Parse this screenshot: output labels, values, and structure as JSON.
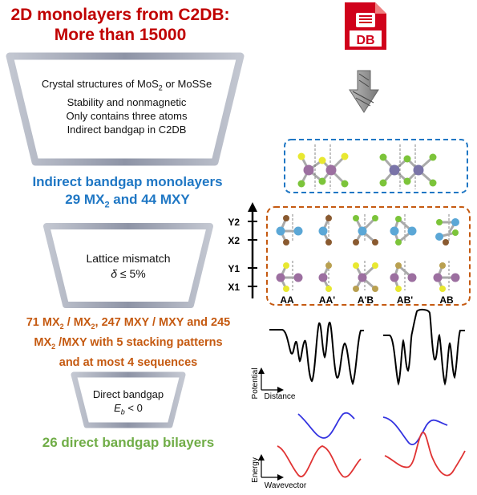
{
  "title": {
    "line1": "2D monolayers from C2DB:",
    "line2": "More than 15000"
  },
  "db_icon": {
    "label": "DB",
    "color": "#d0021b"
  },
  "step1": {
    "line1_prefix": "Crystal structures of  MoS",
    "line1_sub": "2",
    "line1_suffix": " or MoSSe",
    "line2": "Stability and nonmagnetic",
    "line3": "Only contains three atoms",
    "line4": "Indirect bandgap in C2DB"
  },
  "result1": {
    "line1": "Indirect bandgap monolayers",
    "line2_a": "29 MX",
    "line2_sub": "2",
    "line2_b": " and 44 MXY"
  },
  "step2": {
    "line1": "Lattice mismatch",
    "delta": "δ",
    "line2_rest": " ≤ 5%"
  },
  "result2": {
    "l1_a": "71 MX",
    "l1_s1": "2",
    "l1_b": " / MX",
    "l1_s2": "2",
    "l1_c": ", 247 MXY / MXY and 245",
    "l2_a": "MX",
    "l2_s": "2",
    "l2_b": " /MXY with 5 stacking patterns",
    "l3": "and at most 4 sequences"
  },
  "step3": {
    "line1": "Direct bandgap",
    "e": "E",
    "e_sub": "b",
    "line2_rest": " < 0"
  },
  "result3": {
    "text": "26 direct bandgap bilayers"
  },
  "layer_axis": {
    "labels": [
      "Y2",
      "X2",
      "Y1",
      "X1"
    ]
  },
  "stacking_labels": [
    "AA",
    "AA'",
    "A'B",
    "AB'",
    "AB"
  ],
  "potential_plot": {
    "ylabel": "Potential",
    "xlabel": "Distance"
  },
  "energy_plot": {
    "ylabel": "Energy",
    "xlabel": "Wavevector"
  },
  "colors": {
    "title": "#c00000",
    "blue": "#1f77c4",
    "orange": "#c55a11",
    "green": "#70ad47",
    "funnel": "#9aa0b0"
  }
}
